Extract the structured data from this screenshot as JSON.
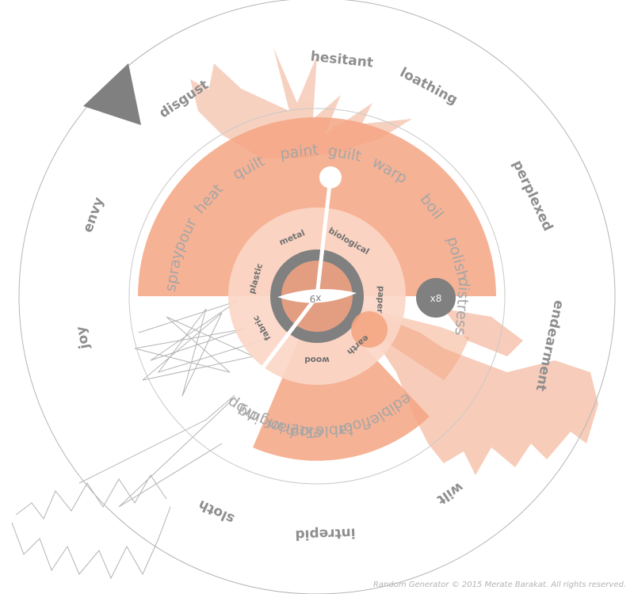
{
  "outer_ring": {
    "words": [
      "hesitant",
      "loathing",
      "perplexed",
      "endearment",
      "wilt",
      "intrepid",
      "sloth",
      "joy",
      "envy",
      "disgust"
    ]
  },
  "middle_ring": {
    "top_words": [
      "spray",
      "pour",
      "heat",
      "quilt",
      "paint",
      "guilt",
      "warp",
      "boil",
      "polish",
      "distress"
    ],
    "bottom_words": [
      "drop",
      "hanging",
      "exterior",
      "tableTop",
      "floor",
      "edible"
    ]
  },
  "inner_ring": {
    "words": [
      "plastic",
      "metal",
      "biological",
      "paper",
      "earth",
      "wood",
      "fabric"
    ]
  },
  "center": {
    "left_label": "x9",
    "right_label": "x8"
  },
  "footer": {
    "copyright": "Random Generator © 2015 Merate Barakat. All rights reserved."
  },
  "colors": {
    "accent": "#f4a582",
    "accent_light": "#fbd6c6",
    "ring_dark": "#808080",
    "center_fill": "#e39e82",
    "outline": "#b5b5b5"
  }
}
